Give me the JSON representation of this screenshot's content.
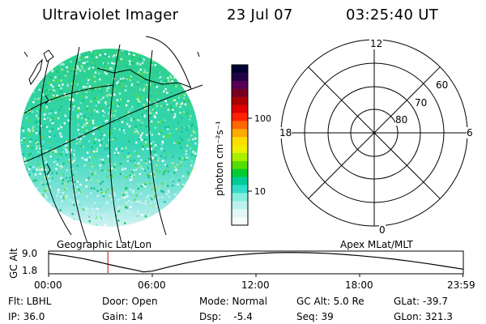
{
  "header": {
    "title": "Ultraviolet Imager",
    "date": "23 Jul 07",
    "time": "03:25:40 UT"
  },
  "left_panel": {
    "caption": "Geographic Lat/Lon"
  },
  "colorbar": {
    "unit_label": "photon cm⁻²s⁻¹",
    "ticks": [
      "100",
      "10"
    ],
    "colors": [
      "#000033",
      "#220044",
      "#550055",
      "#770022",
      "#aa0000",
      "#dd0000",
      "#ff2200",
      "#ff6600",
      "#ffaa00",
      "#ffdd00",
      "#eeee00",
      "#aaee00",
      "#55dd00",
      "#00cc33",
      "#00cc99",
      "#33ddcc",
      "#88eedd",
      "#bbf2ee",
      "#e0f8f8",
      "#f4fcfc"
    ]
  },
  "polar_panel": {
    "caption": "Apex MLat/MLT",
    "mlt_labels": {
      "top": "12",
      "left": "18",
      "right": "6",
      "bottom": "0"
    },
    "lat_labels": [
      "60",
      "70",
      "80"
    ]
  },
  "altitude_plot": {
    "ylabel": "GC Alt",
    "yticks": [
      "9.0",
      "1.8"
    ],
    "xticks": [
      "00:00",
      "06:00",
      "12:00",
      "18:00",
      "23:59"
    ],
    "ymin": 1.8,
    "ymax": 9.0,
    "current_time_hours": 3.43,
    "curve": [
      {
        "t": 0,
        "alt": 8.7
      },
      {
        "t": 1,
        "alt": 7.9
      },
      {
        "t": 2,
        "alt": 6.8
      },
      {
        "t": 3,
        "alt": 5.4
      },
      {
        "t": 4,
        "alt": 3.9
      },
      {
        "t": 5,
        "alt": 2.6
      },
      {
        "t": 5.5,
        "alt": 1.9
      },
      {
        "t": 6,
        "alt": 2.2
      },
      {
        "t": 7,
        "alt": 3.8
      },
      {
        "t": 8,
        "alt": 5.3
      },
      {
        "t": 9,
        "alt": 6.5
      },
      {
        "t": 10,
        "alt": 7.5
      },
      {
        "t": 11,
        "alt": 8.2
      },
      {
        "t": 12,
        "alt": 8.7
      },
      {
        "t": 13,
        "alt": 9.0
      },
      {
        "t": 14,
        "alt": 9.1
      },
      {
        "t": 15,
        "alt": 9.0
      },
      {
        "t": 16,
        "alt": 8.8
      },
      {
        "t": 17,
        "alt": 8.4
      },
      {
        "t": 18,
        "alt": 7.9
      },
      {
        "t": 19,
        "alt": 7.3
      },
      {
        "t": 20,
        "alt": 6.6
      },
      {
        "t": 21,
        "alt": 5.8
      },
      {
        "t": 22,
        "alt": 4.9
      },
      {
        "t": 23,
        "alt": 3.9
      },
      {
        "t": 23.98,
        "alt": 2.9
      }
    ]
  },
  "footer": {
    "flt": "Flt: LBHL",
    "door": "Door: Open",
    "mode": "Mode: Normal",
    "gc_alt": "GC Alt: 5.0 Re",
    "glat": "GLat: -39.7",
    "ip": "IP: 36.0",
    "gain": "Gain: 14",
    "dsp": "Dsp:    -5.4",
    "seq": "Seq: 39",
    "glon": "GLon: 321.3"
  }
}
